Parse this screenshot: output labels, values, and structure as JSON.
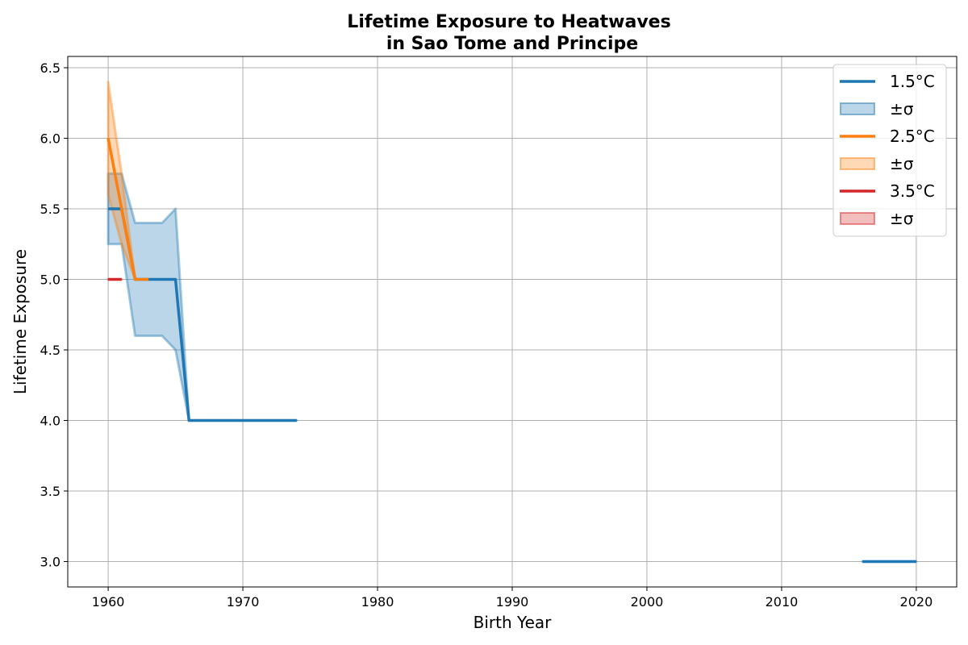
{
  "chart_data": {
    "type": "line",
    "title_line1": "Lifetime Exposure to Heatwaves",
    "title_line2": "in Sao Tome and Principe",
    "xlabel": "Birth Year",
    "ylabel": "Lifetime Exposure",
    "xlim": [
      1957,
      2023
    ],
    "ylim": [
      2.82,
      6.58
    ],
    "x_ticks": [
      1960,
      1970,
      1980,
      1990,
      2000,
      2010,
      2020
    ],
    "y_ticks": [
      3.0,
      3.5,
      4.0,
      4.5,
      5.0,
      5.5,
      6.0,
      6.5
    ],
    "grid": true,
    "legend_position": "top-right",
    "series": [
      {
        "name": "1.5°C",
        "band_label": "±σ",
        "color": "#1f77b4",
        "segments": [
          {
            "x": [
              1960,
              1961,
              1962,
              1963,
              1964,
              1965,
              1966,
              1967,
              1968,
              1969,
              1970,
              1971,
              1972,
              1973,
              1974
            ],
            "y": [
              5.5,
              5.5,
              5.0,
              5.0,
              5.0,
              5.0,
              4.0,
              4.0,
              4.0,
              4.0,
              4.0,
              4.0,
              4.0,
              4.0,
              4.0
            ],
            "lower": [
              5.25,
              5.25,
              4.6,
              4.6,
              4.6,
              4.5,
              4.0,
              4.0,
              4.0,
              4.0,
              4.0,
              4.0,
              4.0,
              4.0,
              4.0
            ],
            "upper": [
              5.75,
              5.75,
              5.4,
              5.4,
              5.4,
              5.5,
              4.0,
              4.0,
              4.0,
              4.0,
              4.0,
              4.0,
              4.0,
              4.0,
              4.0
            ]
          },
          {
            "x": [
              2016,
              2017,
              2018,
              2019,
              2020
            ],
            "y": [
              3.0,
              3.0,
              3.0,
              3.0,
              3.0
            ],
            "lower": [
              3.0,
              3.0,
              3.0,
              3.0,
              3.0
            ],
            "upper": [
              3.0,
              3.0,
              3.0,
              3.0,
              3.0
            ]
          }
        ]
      },
      {
        "name": "2.5°C",
        "band_label": "±σ",
        "color": "#ff7f0e",
        "segments": [
          {
            "x": [
              1960,
              1961,
              1962,
              1963
            ],
            "y": [
              6.0,
              5.5,
              5.0,
              5.0
            ],
            "lower": [
              5.6,
              5.25,
              5.0,
              5.0
            ],
            "upper": [
              6.4,
              5.75,
              5.0,
              5.0
            ]
          }
        ]
      },
      {
        "name": "3.5°C",
        "band_label": "±σ",
        "color": "#d62728",
        "segments": [
          {
            "x": [
              1960,
              1961
            ],
            "y": [
              5.0,
              5.0
            ],
            "lower": [
              5.0,
              5.0
            ],
            "upper": [
              5.0,
              5.0
            ]
          }
        ]
      }
    ]
  }
}
